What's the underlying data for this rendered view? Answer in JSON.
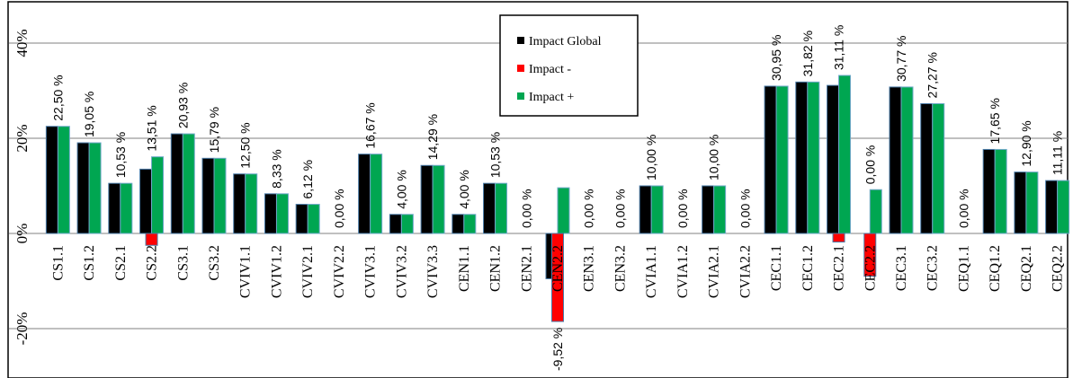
{
  "chart_data": {
    "type": "bar",
    "title": "",
    "xlabel": "",
    "ylabel": "",
    "ylim": [
      -30,
      50
    ],
    "yticks": [
      "40%",
      "20%",
      "0%",
      "-20%"
    ],
    "grid": true,
    "legend_position": "top-center",
    "categories": [
      "CS1.1",
      "CS1.2",
      "CS2.1",
      "CS2.2",
      "CS3.1",
      "CS3.2",
      "CVIV1.1",
      "CVIV1.2",
      "CVIV2.1",
      "CVIV2.2",
      "CVIV3.1",
      "CVIV3.2",
      "CVIV3.3",
      "CEN1.1",
      "CEN1.2",
      "CEN2.1",
      "CEN2.2",
      "CEN3.1",
      "CEN3.2",
      "CVIA1.1",
      "CVIA1.2",
      "CVIA2.1",
      "CVIA2.2",
      "CEC1.1",
      "CEC1.2",
      "CEC2.1",
      "CEC2.2",
      "CEC3.1",
      "CEC3.2",
      "CEQ1.1",
      "CEQ1.2",
      "CEQ2.1",
      "CEQ2.2"
    ],
    "series": [
      {
        "name": "Impact Global",
        "color": "#000000",
        "values": [
          22.5,
          19.05,
          10.53,
          13.51,
          20.93,
          15.79,
          12.5,
          8.33,
          6.12,
          0,
          16.67,
          4.0,
          14.29,
          4.0,
          10.53,
          0,
          -9.52,
          0,
          0,
          10.0,
          0,
          10.0,
          0,
          30.95,
          31.82,
          31.11,
          0,
          30.77,
          27.27,
          0,
          17.65,
          12.9,
          11.11
        ]
      },
      {
        "name": "Impact -",
        "color": "#ff0000",
        "values": [
          0,
          0,
          0,
          -2.5,
          0,
          0,
          0,
          0,
          0,
          0,
          0,
          0,
          0,
          0,
          0,
          0,
          -18.5,
          0,
          0,
          0,
          0,
          0,
          0,
          0,
          0,
          -1.8,
          -9.0,
          0,
          0,
          0,
          0,
          0,
          0
        ]
      },
      {
        "name": "Impact +",
        "color": "#00a651",
        "values": [
          22.5,
          19.05,
          10.53,
          16.1,
          20.93,
          15.79,
          12.5,
          8.33,
          6.12,
          0,
          16.67,
          4.0,
          14.29,
          4.0,
          10.53,
          0,
          9.6,
          0,
          0,
          10.0,
          0,
          10.0,
          0,
          30.95,
          31.82,
          33.2,
          9.2,
          30.77,
          27.27,
          0,
          17.65,
          12.9,
          11.11
        ]
      }
    ],
    "data_labels": [
      "22,50 %",
      "19,05 %",
      "10,53 %",
      "13,51 %",
      "20,93 %",
      "15,79 %",
      "12,50 %",
      "8,33 %",
      "6,12 %",
      "0,00 %",
      "16,67 %",
      "4,00 %",
      "14,29 %",
      "4,00 %",
      "10,53 %",
      "0,00 %",
      "-9,52 %",
      "0,00 %",
      "0,00 %",
      "10,00 %",
      "0,00 %",
      "10,00 %",
      "0,00 %",
      "30,95 %",
      "31,82 %",
      "31,11 %",
      "0,00 %",
      "30,77 %",
      "27,27 %",
      "0,00 %",
      "17,65 %",
      "12,90 %",
      "11,11 %"
    ]
  }
}
